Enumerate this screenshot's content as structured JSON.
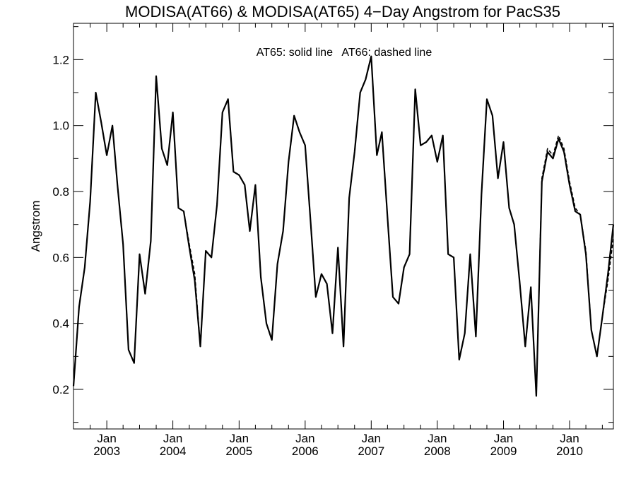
{
  "chart_data": {
    "type": "line",
    "title": "MODISA(AT66) & MODISA(AT65) 4−Day Angstrom for PacS35",
    "xlabel": "",
    "ylabel": "Angstrom",
    "annotation": "AT65: solid line   AT66: dashed line",
    "ylim": [
      0.08,
      1.31
    ],
    "xlim": [
      "2002-07-01",
      "2010-08-31"
    ],
    "yticks": [
      0.2,
      0.4,
      0.6,
      0.8,
      1.0,
      1.2
    ],
    "ytick_labels": [
      "0.2",
      "0.4",
      "0.6",
      "0.8",
      "1.0",
      "1.2"
    ],
    "xticks": [
      {
        "date": "2003-01-01",
        "month": "Jan",
        "year": "2003"
      },
      {
        "date": "2004-01-01",
        "month": "Jan",
        "year": "2004"
      },
      {
        "date": "2005-01-01",
        "month": "Jan",
        "year": "2005"
      },
      {
        "date": "2006-01-01",
        "month": "Jan",
        "year": "2006"
      },
      {
        "date": "2007-01-01",
        "month": "Jan",
        "year": "2007"
      },
      {
        "date": "2008-01-01",
        "month": "Jan",
        "year": "2008"
      },
      {
        "date": "2009-01-01",
        "month": "Jan",
        "year": "2009"
      },
      {
        "date": "2010-01-01",
        "month": "Jan",
        "year": "2010"
      }
    ],
    "grid": false,
    "series": [
      {
        "name": "AT65",
        "style": "solid",
        "color": "#000000",
        "x": [
          "2002-07-01",
          "2002-08-01",
          "2002-09-01",
          "2002-10-01",
          "2002-11-01",
          "2002-12-01",
          "2003-01-01",
          "2003-02-01",
          "2003-03-01",
          "2003-04-01",
          "2003-05-01",
          "2003-06-01",
          "2003-07-01",
          "2003-08-01",
          "2003-09-01",
          "2003-10-01",
          "2003-11-01",
          "2003-12-01",
          "2004-01-01",
          "2004-02-01",
          "2004-03-01",
          "2004-04-01",
          "2004-05-01",
          "2004-06-01",
          "2004-07-01",
          "2004-08-01",
          "2004-09-01",
          "2004-10-01",
          "2004-11-01",
          "2004-12-01",
          "2005-01-01",
          "2005-02-01",
          "2005-03-01",
          "2005-04-01",
          "2005-05-01",
          "2005-06-01",
          "2005-07-01",
          "2005-08-01",
          "2005-09-01",
          "2005-10-01",
          "2005-11-01",
          "2005-12-01",
          "2006-01-01",
          "2006-02-01",
          "2006-03-01",
          "2006-04-01",
          "2006-05-01",
          "2006-06-01",
          "2006-07-01",
          "2006-08-01",
          "2006-09-01",
          "2006-10-01",
          "2006-11-01",
          "2006-12-01",
          "2007-01-01",
          "2007-02-01",
          "2007-03-01",
          "2007-04-01",
          "2007-05-01",
          "2007-06-01",
          "2007-07-01",
          "2007-08-01",
          "2007-09-01",
          "2007-10-01",
          "2007-11-01",
          "2007-12-01",
          "2008-01-01",
          "2008-02-01",
          "2008-03-01",
          "2008-04-01",
          "2008-05-01",
          "2008-06-01",
          "2008-07-01",
          "2008-08-01",
          "2008-09-01",
          "2008-10-01",
          "2008-11-01",
          "2008-12-01",
          "2009-01-01",
          "2009-02-01",
          "2009-03-01",
          "2009-04-01",
          "2009-05-01",
          "2009-06-01",
          "2009-07-01",
          "2009-08-01",
          "2009-09-01",
          "2009-10-01",
          "2009-11-01",
          "2009-12-01",
          "2010-01-01",
          "2010-02-01",
          "2010-03-01",
          "2010-04-01",
          "2010-05-01",
          "2010-06-01",
          "2010-07-01",
          "2010-08-01",
          "2010-08-31"
        ],
        "y": [
          0.21,
          0.45,
          0.57,
          0.77,
          1.1,
          1.01,
          0.91,
          1.0,
          0.82,
          0.64,
          0.32,
          0.28,
          0.61,
          0.49,
          0.65,
          1.15,
          0.93,
          0.88,
          1.04,
          0.75,
          0.74,
          0.63,
          0.53,
          0.33,
          0.62,
          0.6,
          0.76,
          1.04,
          1.08,
          0.86,
          0.85,
          0.82,
          0.68,
          0.82,
          0.54,
          0.4,
          0.35,
          0.58,
          0.68,
          0.89,
          1.03,
          0.98,
          0.94,
          0.7,
          0.48,
          0.55,
          0.52,
          0.37,
          0.63,
          0.33,
          0.78,
          0.92,
          1.1,
          1.14,
          1.21,
          0.91,
          0.98,
          0.72,
          0.48,
          0.46,
          0.57,
          0.61,
          1.11,
          0.94,
          0.95,
          0.97,
          0.89,
          0.97,
          0.61,
          0.6,
          0.29,
          0.37,
          0.61,
          0.36,
          0.79,
          1.08,
          1.03,
          0.84,
          0.95,
          0.75,
          0.7,
          0.52,
          0.33,
          0.51,
          0.18,
          0.83,
          0.92,
          0.9,
          0.96,
          0.92,
          0.82,
          0.74,
          0.73,
          0.61,
          0.38,
          0.3,
          0.42,
          0.55,
          0.7
        ]
      },
      {
        "name": "AT66",
        "style": "dashed",
        "color": "#000000",
        "x": [
          "2002-07-01",
          "2002-08-01",
          "2002-09-01",
          "2002-10-01",
          "2002-11-01",
          "2002-12-01",
          "2003-01-01",
          "2003-02-01",
          "2003-03-01",
          "2003-04-01",
          "2003-05-01",
          "2003-06-01",
          "2003-07-01",
          "2003-08-01",
          "2003-09-01",
          "2003-10-01",
          "2003-11-01",
          "2003-12-01",
          "2004-01-01",
          "2004-02-01",
          "2004-03-01",
          "2004-04-01",
          "2004-05-01",
          "2004-06-01",
          "2004-07-01",
          "2004-08-01",
          "2004-09-01",
          "2004-10-01",
          "2004-11-01",
          "2004-12-01",
          "2005-01-01",
          "2005-02-01",
          "2005-03-01",
          "2005-04-01",
          "2005-05-01",
          "2005-06-01",
          "2005-07-01",
          "2005-08-01",
          "2005-09-01",
          "2005-10-01",
          "2005-11-01",
          "2005-12-01",
          "2006-01-01",
          "2006-02-01",
          "2006-03-01",
          "2006-04-01",
          "2006-05-01",
          "2006-06-01",
          "2006-07-01",
          "2006-08-01",
          "2006-09-01",
          "2006-10-01",
          "2006-11-01",
          "2006-12-01",
          "2007-01-01",
          "2007-02-01",
          "2007-03-01",
          "2007-04-01",
          "2007-05-01",
          "2007-06-01",
          "2007-07-01",
          "2007-08-01",
          "2007-09-01",
          "2007-10-01",
          "2007-11-01",
          "2007-12-01",
          "2008-01-01",
          "2008-02-01",
          "2008-03-01",
          "2008-04-01",
          "2008-05-01",
          "2008-06-01",
          "2008-07-01",
          "2008-08-01",
          "2008-09-01",
          "2008-10-01",
          "2008-11-01",
          "2008-12-01",
          "2009-01-01",
          "2009-02-01",
          "2009-03-01",
          "2009-04-01",
          "2009-05-01",
          "2009-06-01",
          "2009-07-01",
          "2009-08-01",
          "2009-09-01",
          "2009-10-01",
          "2009-11-01",
          "2009-12-01",
          "2010-01-01",
          "2010-02-01",
          "2010-03-01",
          "2010-04-01",
          "2010-05-01",
          "2010-06-01",
          "2010-07-01",
          "2010-08-01",
          "2010-08-31"
        ],
        "y": [
          0.21,
          0.45,
          0.57,
          0.77,
          1.1,
          1.01,
          0.91,
          1.0,
          0.82,
          0.64,
          0.32,
          0.28,
          0.61,
          0.49,
          0.65,
          1.15,
          0.93,
          0.88,
          1.04,
          0.75,
          0.74,
          0.64,
          0.55,
          0.33,
          0.62,
          0.6,
          0.76,
          1.04,
          1.08,
          0.86,
          0.85,
          0.82,
          0.68,
          0.82,
          0.54,
          0.4,
          0.35,
          0.58,
          0.68,
          0.89,
          1.03,
          0.98,
          0.94,
          0.7,
          0.48,
          0.55,
          0.52,
          0.37,
          0.63,
          0.33,
          0.78,
          0.92,
          1.1,
          1.14,
          1.21,
          0.91,
          0.98,
          0.72,
          0.48,
          0.46,
          0.57,
          0.61,
          1.11,
          0.94,
          0.95,
          0.97,
          0.89,
          0.97,
          0.61,
          0.6,
          0.29,
          0.37,
          0.61,
          0.36,
          0.79,
          1.08,
          1.03,
          0.84,
          0.95,
          0.75,
          0.7,
          0.52,
          0.33,
          0.51,
          0.18,
          0.84,
          0.93,
          0.91,
          0.97,
          0.93,
          0.83,
          0.75,
          0.73,
          0.62,
          0.38,
          0.3,
          0.42,
          0.53,
          0.66
        ]
      }
    ]
  }
}
